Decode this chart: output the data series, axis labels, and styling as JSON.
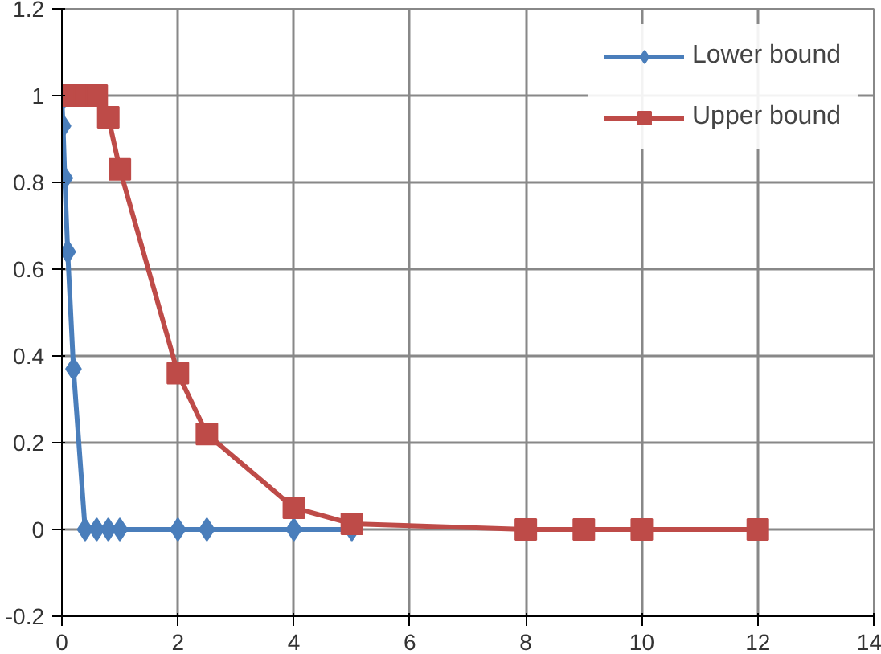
{
  "chart_data": {
    "type": "line",
    "xlim": [
      0,
      14
    ],
    "xticks": [
      0,
      2,
      4,
      6,
      8,
      10,
      12,
      14
    ],
    "ylim": [
      -0.2,
      1.2
    ],
    "yticks": [
      -0.2,
      0,
      0.2,
      0.4,
      0.6,
      0.8,
      1,
      1.2
    ],
    "grid": true,
    "legend": "top right",
    "line_style": "solid",
    "series": [
      {
        "name": "Lower bound",
        "color": "#4a7ebb",
        "marker": "diamond",
        "x": [
          0,
          0.02,
          0.05,
          0.1,
          0.2,
          0.4,
          0.6,
          0.8,
          1,
          2,
          2.5,
          4,
          5
        ],
        "values": [
          0.99,
          0.93,
          0.81,
          0.64,
          0.37,
          0,
          0,
          0,
          0,
          0,
          0,
          0,
          0
        ]
      },
      {
        "name": "Upper bound",
        "color": "#be4b48",
        "marker": "square",
        "x": [
          0,
          0.2,
          0.4,
          0.6,
          0.8,
          1,
          2,
          2.5,
          4,
          5,
          8,
          9,
          10,
          12
        ],
        "values": [
          1,
          1,
          1,
          1,
          0.95,
          0.83,
          0.36,
          0.22,
          0.05,
          0.013,
          0,
          0,
          0,
          0
        ]
      }
    ]
  }
}
